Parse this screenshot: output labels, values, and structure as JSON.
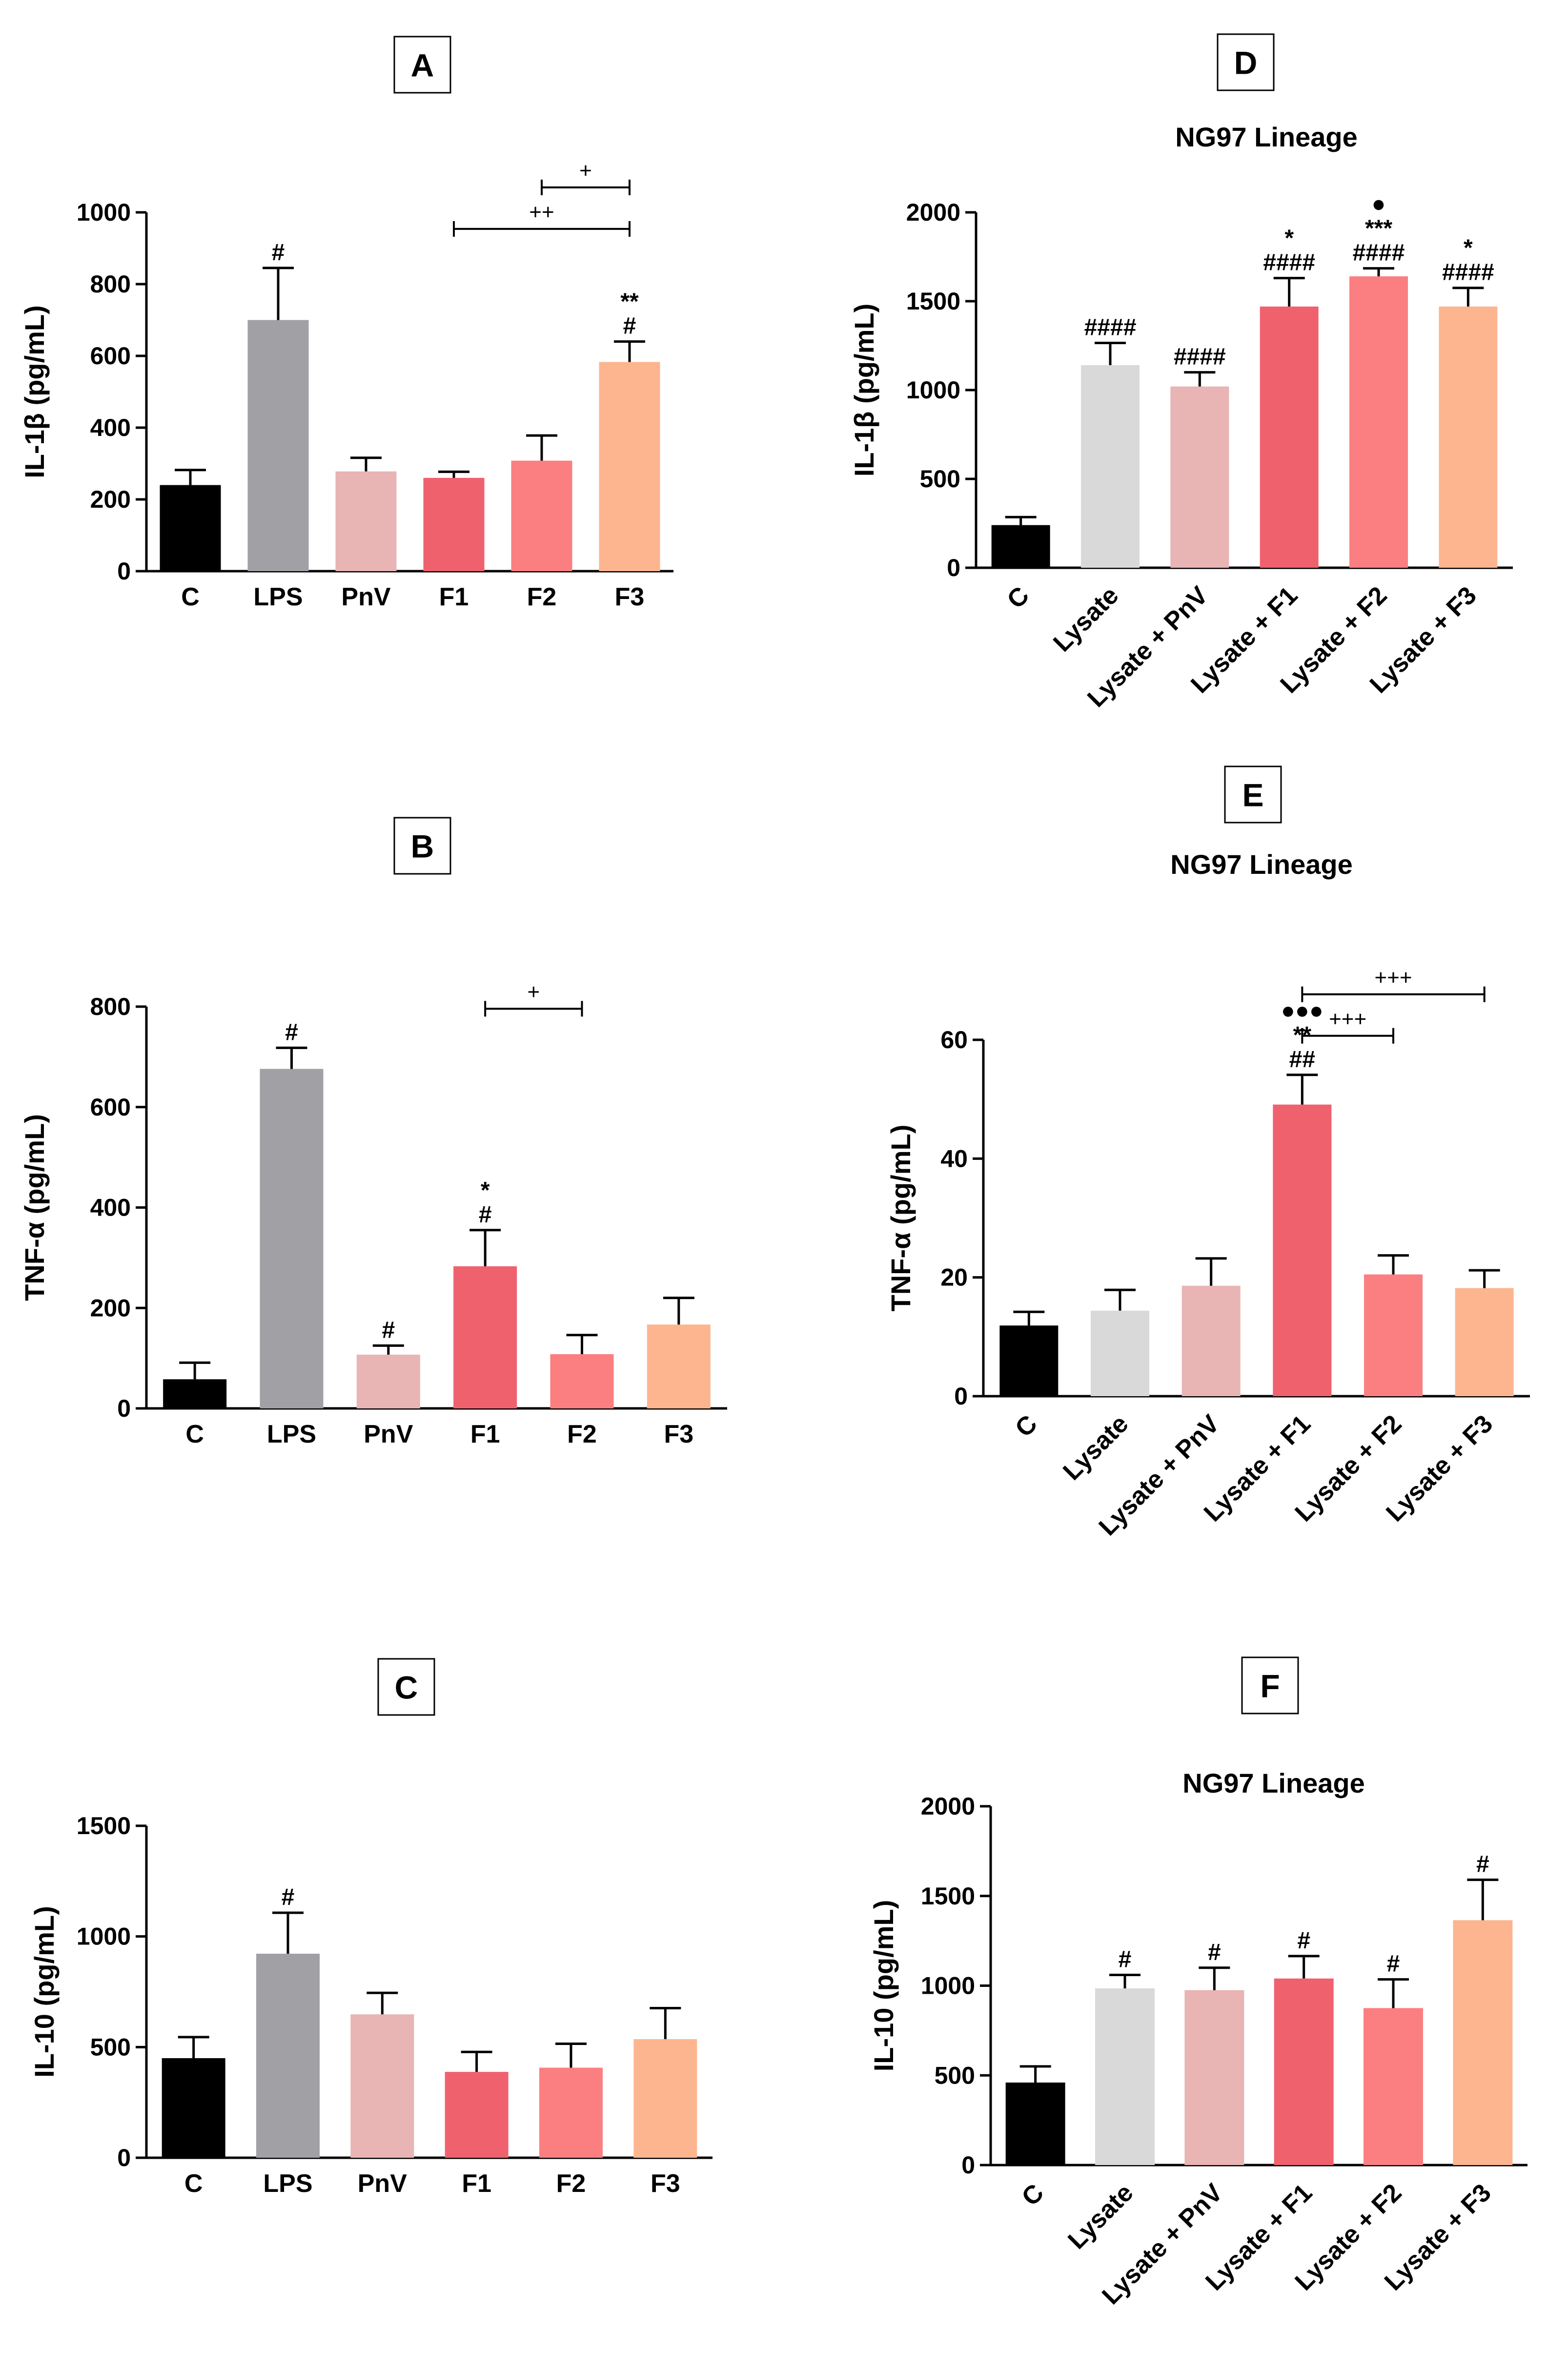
{
  "colors": {
    "C": "#000000",
    "LPS": "#a0a0a5",
    "Lysate": "#d9d9d9",
    "PnV": "#e8b4b4",
    "F1": "#f0616e",
    "F2": "#fb7f81",
    "F3": "#fdb590"
  },
  "chart_data": [
    {
      "panel": "A",
      "type": "bar",
      "title": "",
      "ylabel": "IL-1β (pg/mL)",
      "ylim": [
        0,
        1000
      ],
      "yticks": [
        "0",
        "200",
        "400",
        "600",
        "800",
        "1000"
      ],
      "categories": [
        "C",
        "LPS",
        "PnV",
        "F1",
        "F2",
        "F3"
      ],
      "values": [
        240,
        700,
        278,
        260,
        308,
        583
      ],
      "errors": [
        42,
        145,
        38,
        17,
        70,
        57
      ],
      "annotations": [
        [
          "",
          "#",
          "",
          "",
          "",
          "**\n#"
        ]
      ],
      "brackets": [
        {
          "from": 3,
          "to": 5,
          "label": "++"
        },
        {
          "from": 4,
          "to": 5,
          "label": "+"
        }
      ]
    },
    {
      "panel": "B",
      "type": "bar",
      "title": "",
      "ylabel": "TNF-α (pg/mL)",
      "ylim": [
        0,
        800
      ],
      "yticks": [
        "0",
        "200",
        "400",
        "600",
        "800"
      ],
      "categories": [
        "C",
        "LPS",
        "PnV",
        "F1",
        "F2",
        "F3"
      ],
      "values": [
        58,
        676,
        107,
        283,
        108,
        167
      ],
      "errors": [
        33,
        42,
        18,
        72,
        38,
        53
      ],
      "annotations": [
        [
          "",
          "#",
          "#",
          "*\n#",
          "",
          ""
        ]
      ],
      "brackets": [
        {
          "from": 3,
          "to": 4,
          "label": "+"
        }
      ]
    },
    {
      "panel": "C",
      "type": "bar",
      "title": "",
      "ylabel": "IL-10  (pg/mL)",
      "ylim": [
        0,
        1500
      ],
      "yticks": [
        "0",
        "500",
        "1000",
        "1500"
      ],
      "categories": [
        "C",
        "LPS",
        "PnV",
        "F1",
        "F2",
        "F3"
      ],
      "values": [
        450,
        922,
        648,
        388,
        407,
        536
      ],
      "errors": [
        95,
        185,
        97,
        90,
        108,
        140
      ],
      "annotations": [
        [
          "",
          "#",
          "",
          "",
          "",
          ""
        ]
      ],
      "brackets": []
    },
    {
      "panel": "D",
      "type": "bar",
      "title": "NG97 Lineage",
      "ylabel": "IL-1β (pg/mL)",
      "ylim": [
        0,
        2000
      ],
      "yticks": [
        "0",
        "500",
        "1000",
        "1500",
        "2000"
      ],
      "categories": [
        "C",
        "Lysate",
        "Lysate + PnV",
        "Lysate + F1",
        "Lysate + F2",
        "Lysate + F3"
      ],
      "values": [
        240,
        1140,
        1020,
        1470,
        1640,
        1470
      ],
      "errors": [
        45,
        125,
        80,
        160,
        45,
        105
      ],
      "annotations": [
        [
          "",
          "####",
          "####",
          "*\n####",
          "●\n***\n####",
          "*\n####"
        ]
      ],
      "brackets": []
    },
    {
      "panel": "E",
      "type": "bar",
      "title": "NG97 Lineage",
      "ylabel": "TNF-α (pg/mL)",
      "ylim": [
        0,
        60
      ],
      "yticks": [
        "0",
        "20",
        "40",
        "60"
      ],
      "categories": [
        "C",
        "Lysate",
        "Lysate + PnV",
        "Lysate + F1",
        "Lysate + F2",
        "Lysate + F3"
      ],
      "values": [
        11.9,
        14.4,
        18.6,
        49.1,
        20.5,
        18.2
      ],
      "errors": [
        2.3,
        3.5,
        4.6,
        5.0,
        3.2,
        3.0
      ],
      "annotations": [
        [
          "",
          "",
          "",
          "●●●\n**\n##",
          "",
          ""
        ]
      ],
      "brackets": [
        {
          "from": 3,
          "to": 4,
          "label": "+++"
        },
        {
          "from": 3,
          "to": 5,
          "label": "+++"
        }
      ]
    },
    {
      "panel": "F",
      "type": "bar",
      "title": "NG97 Lineage",
      "ylabel": "IL-10  (pg/mL)",
      "ylim": [
        0,
        2000
      ],
      "yticks": [
        "0",
        "500",
        "1000",
        "1500",
        "2000"
      ],
      "categories": [
        "C",
        "Lysate",
        "Lysate + PnV",
        "Lysate + F1",
        "Lysate + F2",
        "Lysate + F3"
      ],
      "values": [
        460,
        985,
        975,
        1040,
        875,
        1365
      ],
      "errors": [
        90,
        75,
        125,
        125,
        160,
        225
      ],
      "annotations": [
        [
          "",
          "#",
          "#",
          "#",
          "#",
          "#"
        ]
      ],
      "brackets": []
    }
  ]
}
